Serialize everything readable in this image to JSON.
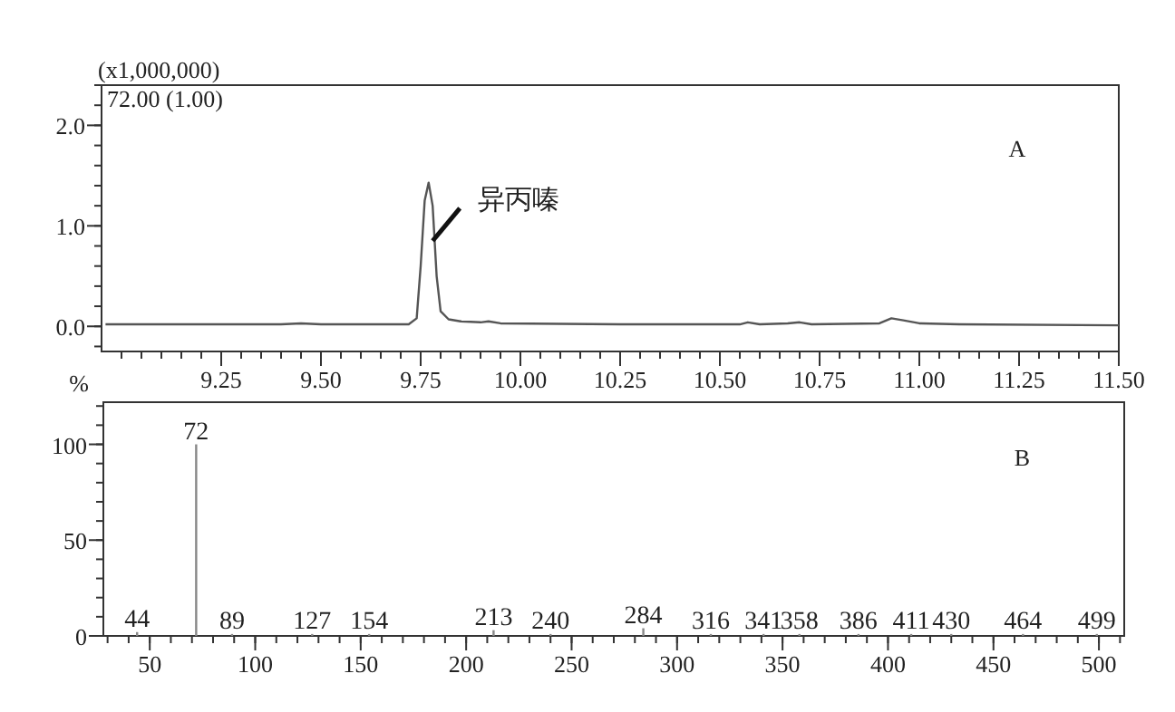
{
  "chart_data": [
    {
      "type": "line",
      "xlim": [
        8.95,
        11.5
      ],
      "ylim": [
        -0.25,
        2.4
      ],
      "xticks": [
        {
          "value": 9.25,
          "label": "9.25"
        },
        {
          "value": 9.5,
          "label": "9.50"
        },
        {
          "value": 9.75,
          "label": "9.75"
        },
        {
          "value": 10,
          "label": "10.00"
        },
        {
          "value": 10.25,
          "label": "10.25"
        },
        {
          "value": 10.5,
          "label": "10.50"
        },
        {
          "value": 10.75,
          "label": "10.75"
        },
        {
          "value": 11,
          "label": "11.00"
        },
        {
          "value": 11.25,
          "label": "11.25"
        },
        {
          "value": 11.5,
          "label": "11.50"
        }
      ],
      "yticks": [
        {
          "value": 0,
          "label": "0.0"
        },
        {
          "value": 1,
          "label": "1.0"
        },
        {
          "value": 2,
          "label": "2.0"
        }
      ],
      "x": [
        8.96,
        9.4,
        9.45,
        9.5,
        9.72,
        9.74,
        9.75,
        9.76,
        9.77,
        9.78,
        9.79,
        9.8,
        9.82,
        9.85,
        9.9,
        9.92,
        9.95,
        10.25,
        10.55,
        10.57,
        10.6,
        10.67,
        10.7,
        10.73,
        10.9,
        10.93,
        10.96,
        11.0,
        11.1,
        11.5
      ],
      "series": [
        {
          "color": "#555555",
          "values": [
            0.02,
            0.02,
            0.03,
            0.02,
            0.02,
            0.08,
            0.6,
            1.25,
            1.43,
            1.2,
            0.5,
            0.15,
            0.07,
            0.05,
            0.04,
            0.05,
            0.03,
            0.02,
            0.02,
            0.04,
            0.02,
            0.03,
            0.04,
            0.02,
            0.03,
            0.08,
            0.06,
            0.03,
            0.02,
            0.01
          ]
        }
      ],
      "grid": false,
      "annotations": [
        "(x1,000,000)",
        "72.00 (1.00)",
        "A",
        {
          "text": "异丙嗪",
          "x": 9.78,
          "y": 0.85
        }
      ]
    },
    {
      "type": "bar",
      "xlim": [
        28,
        512
      ],
      "ylim": [
        0,
        122
      ],
      "ylabel": "%",
      "xticks": [
        50,
        100,
        150,
        200,
        250,
        300,
        350,
        400,
        450,
        500
      ],
      "yticks": [
        0,
        50,
        100
      ],
      "x": [
        44,
        72,
        89,
        127,
        154,
        213,
        240,
        284,
        316,
        341,
        358,
        386,
        411,
        430,
        464,
        499
      ],
      "series": [
        {
          "color": "#888888",
          "values": [
            2,
            100,
            1,
            1,
            1,
            3,
            1,
            4,
            1,
            1,
            1,
            1,
            1,
            1,
            1,
            1
          ]
        }
      ],
      "grid": false,
      "annotations": [
        "B",
        {
          "text": "44",
          "x": 44,
          "y": 2
        },
        {
          "text": "72",
          "x": 72,
          "y": 100
        },
        {
          "text": "89",
          "x": 89,
          "y": 1
        },
        {
          "text": "127",
          "x": 127,
          "y": 1
        },
        {
          "text": "154",
          "x": 154,
          "y": 1
        },
        {
          "text": "213",
          "x": 213,
          "y": 3
        },
        {
          "text": "240",
          "x": 240,
          "y": 1
        },
        {
          "text": "284",
          "x": 284,
          "y": 4
        },
        {
          "text": "316",
          "x": 316,
          "y": 1
        },
        {
          "text": "341",
          "x": 341,
          "y": 1
        },
        {
          "text": "358",
          "x": 358,
          "y": 1
        },
        {
          "text": "386",
          "x": 386,
          "y": 1
        },
        {
          "text": "411",
          "x": 411,
          "y": 1
        },
        {
          "text": "430",
          "x": 430,
          "y": 1
        },
        {
          "text": "464",
          "x": 464,
          "y": 1
        },
        {
          "text": "499",
          "x": 499,
          "y": 1
        }
      ]
    }
  ]
}
